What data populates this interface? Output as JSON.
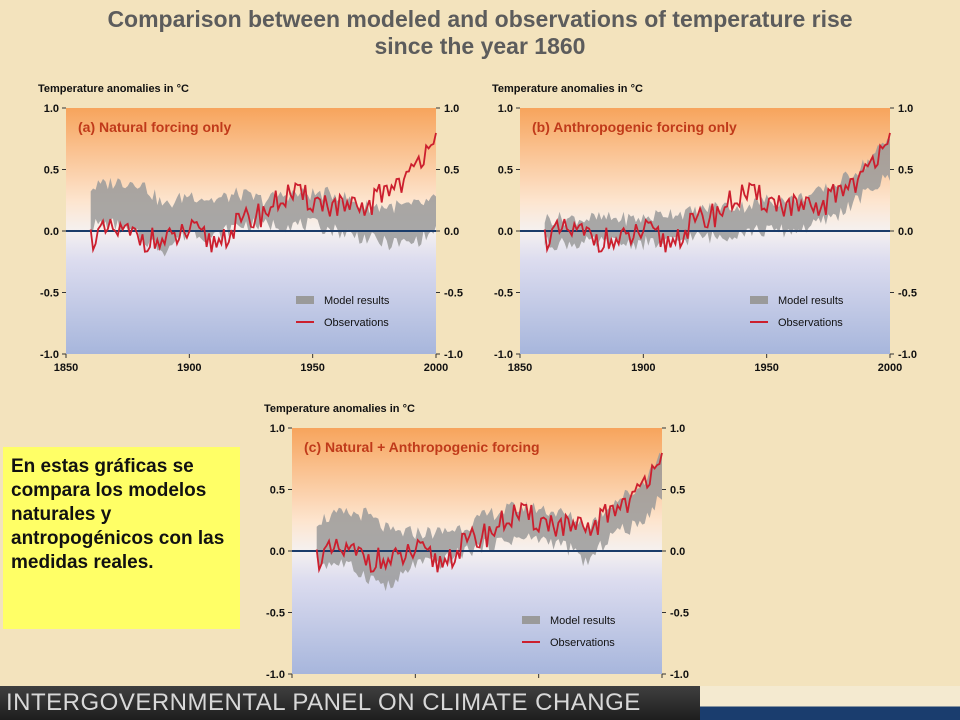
{
  "title": "Comparison between modeled and observations of temperature rise",
  "title_line2": "since the year 1860",
  "callout_text": "En estas gráficas se compara los modelos naturales y antropogénicos con las medidas reales.",
  "footer_text": "INTERGOVERNMENTAL PANEL ON CLIMATE CHANGE",
  "colors": {
    "observations": "#cc1f2e",
    "model": "#9a9a9a",
    "zero_line": "#1a3c6a",
    "callout_bg": "#ffff66"
  },
  "chart_data": [
    {
      "type": "line",
      "panel_title": "(a) Natural forcing only",
      "ylabel": "Temperature anomalies in °C",
      "xlim": [
        1850,
        2000
      ],
      "ylim": [
        -1.0,
        1.0
      ],
      "x_ticks": [
        "1850",
        "1900",
        "1950",
        "2000"
      ],
      "y_ticks": [
        "1.0",
        "0.5",
        "0.0",
        "-0.5",
        "-1.0"
      ],
      "legend": [
        "Model results",
        "Observations"
      ],
      "legend_position": "bottom-right",
      "x": [
        1860,
        1870,
        1880,
        1890,
        1900,
        1910,
        1920,
        1930,
        1940,
        1950,
        1960,
        1970,
        1980,
        1990,
        2000
      ],
      "series": [
        {
          "name": "Observations",
          "values": [
            -0.05,
            0.0,
            -0.05,
            -0.1,
            0.0,
            -0.1,
            0.05,
            0.15,
            0.3,
            0.25,
            0.2,
            0.15,
            0.35,
            0.45,
            0.85
          ]
        },
        {
          "name": "Model results",
          "band_low": [
            0.05,
            0.05,
            -0.05,
            -0.15,
            0.0,
            -0.05,
            0.05,
            0.05,
            0.05,
            0.05,
            0.0,
            -0.05,
            -0.1,
            -0.1,
            0.0
          ],
          "band_high": [
            0.35,
            0.4,
            0.4,
            0.2,
            0.3,
            0.25,
            0.3,
            0.25,
            0.3,
            0.3,
            0.3,
            0.2,
            0.2,
            0.2,
            0.25
          ]
        }
      ]
    },
    {
      "type": "line",
      "panel_title": "(b) Anthropogenic forcing only",
      "ylabel": "Temperature anomalies in °C",
      "xlim": [
        1850,
        2000
      ],
      "ylim": [
        -1.0,
        1.0
      ],
      "x_ticks": [
        "1850",
        "1900",
        "1950",
        "2000"
      ],
      "y_ticks": [
        "1.0",
        "0.5",
        "0.0",
        "-0.5",
        "-1.0"
      ],
      "legend": [
        "Model results",
        "Observations"
      ],
      "legend_position": "bottom-right",
      "x": [
        1860,
        1870,
        1880,
        1890,
        1900,
        1910,
        1920,
        1930,
        1940,
        1950,
        1960,
        1970,
        1980,
        1990,
        2000
      ],
      "series": [
        {
          "name": "Observations",
          "values": [
            -0.05,
            0.0,
            -0.05,
            -0.1,
            0.0,
            -0.1,
            0.05,
            0.15,
            0.3,
            0.25,
            0.2,
            0.15,
            0.35,
            0.45,
            0.85
          ]
        },
        {
          "name": "Model results",
          "band_low": [
            -0.1,
            -0.1,
            -0.1,
            -0.1,
            -0.1,
            -0.1,
            -0.05,
            -0.05,
            0.0,
            0.0,
            0.0,
            0.05,
            0.15,
            0.3,
            0.45
          ],
          "band_high": [
            0.1,
            0.1,
            0.1,
            0.1,
            0.1,
            0.15,
            0.15,
            0.2,
            0.2,
            0.25,
            0.25,
            0.3,
            0.4,
            0.55,
            0.75
          ]
        }
      ]
    },
    {
      "type": "line",
      "panel_title": "(c) Natural + Anthropogenic forcing",
      "ylabel": "Temperature anomalies in °C",
      "xlim": [
        1850,
        2000
      ],
      "ylim": [
        -1.0,
        1.0
      ],
      "x_ticks": [],
      "y_ticks": [
        "1.0",
        "0.5",
        "0.0",
        "-0.5",
        "-1.0"
      ],
      "legend": [
        "Model results",
        "Observations"
      ],
      "legend_position": "bottom-right",
      "x": [
        1860,
        1870,
        1880,
        1890,
        1900,
        1910,
        1920,
        1930,
        1940,
        1950,
        1960,
        1970,
        1980,
        1990,
        2000
      ],
      "series": [
        {
          "name": "Observations",
          "values": [
            -0.05,
            0.0,
            -0.05,
            -0.1,
            0.0,
            -0.1,
            0.05,
            0.15,
            0.3,
            0.25,
            0.2,
            0.15,
            0.35,
            0.45,
            0.85
          ]
        },
        {
          "name": "Model results",
          "band_low": [
            -0.1,
            -0.1,
            -0.2,
            -0.3,
            -0.1,
            -0.1,
            0.0,
            0.05,
            0.1,
            0.1,
            0.05,
            -0.1,
            0.15,
            0.2,
            0.45
          ],
          "band_high": [
            0.25,
            0.3,
            0.3,
            0.15,
            0.15,
            0.15,
            0.2,
            0.3,
            0.35,
            0.35,
            0.3,
            0.2,
            0.4,
            0.5,
            0.8
          ]
        }
      ]
    }
  ]
}
